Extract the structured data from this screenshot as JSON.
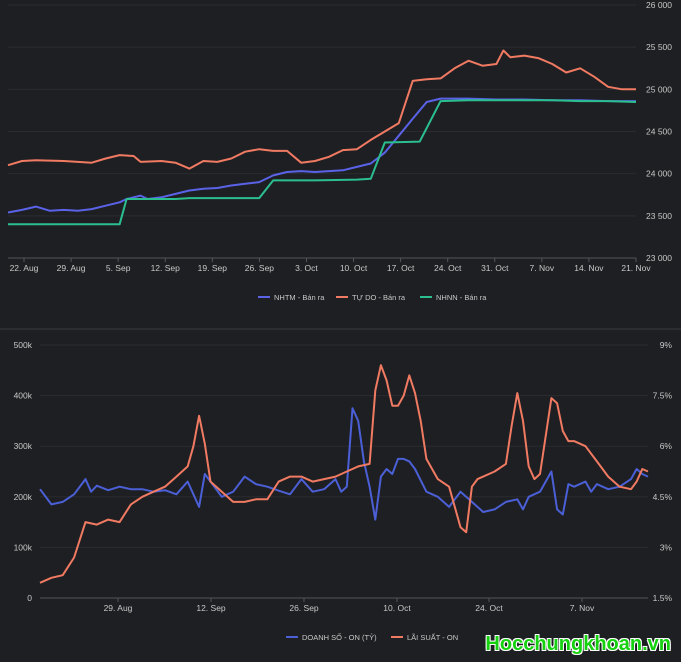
{
  "chart_data": [
    {
      "type": "line",
      "title": "",
      "x_ticks": [
        "22. Aug",
        "29. Aug",
        "5. Sep",
        "12. Sep",
        "19. Sep",
        "26. Sep",
        "3. Oct",
        "10. Oct",
        "17. Oct",
        "24. Oct",
        "31. Oct",
        "7. Nov",
        "14. Nov",
        "21. Nov"
      ],
      "y_ticks": [
        "23 000",
        "23 500",
        "24 000",
        "24 500",
        "25 000",
        "25 500",
        "26 000"
      ],
      "ylim": [
        23000,
        26000
      ],
      "y_axis_side": "right",
      "legend_position": "bottom",
      "series": [
        {
          "name": "NHTM - Bán ra",
          "color": "#5a63e8",
          "points": [
            [
              0,
              23540
            ],
            [
              2,
              23570
            ],
            [
              4,
              23610
            ],
            [
              6,
              23560
            ],
            [
              8,
              23570
            ],
            [
              10,
              23560
            ],
            [
              12,
              23580
            ],
            [
              14,
              23620
            ],
            [
              16,
              23660
            ],
            [
              17,
              23700
            ],
            [
              18,
              23720
            ],
            [
              19,
              23740
            ],
            [
              20,
              23700
            ],
            [
              22,
              23720
            ],
            [
              24,
              23760
            ],
            [
              26,
              23800
            ],
            [
              28,
              23820
            ],
            [
              30,
              23830
            ],
            [
              32,
              23860
            ],
            [
              34,
              23880
            ],
            [
              36,
              23900
            ],
            [
              38,
              23980
            ],
            [
              40,
              24020
            ],
            [
              42,
              24030
            ],
            [
              44,
              24020
            ],
            [
              46,
              24030
            ],
            [
              48,
              24040
            ],
            [
              50,
              24080
            ],
            [
              52,
              24120
            ],
            [
              54,
              24250
            ],
            [
              56,
              24450
            ],
            [
              58,
              24650
            ],
            [
              60,
              24850
            ],
            [
              62,
              24890
            ],
            [
              66,
              24890
            ],
            [
              70,
              24880
            ],
            [
              74,
              24880
            ],
            [
              78,
              24870
            ],
            [
              82,
              24870
            ],
            [
              86,
              24860
            ],
            [
              90,
              24860
            ]
          ]
        },
        {
          "name": "TỰ DO - Bán ra",
          "color": "#f07a62",
          "points": [
            [
              0,
              24100
            ],
            [
              2,
              24150
            ],
            [
              4,
              24160
            ],
            [
              8,
              24150
            ],
            [
              10,
              24140
            ],
            [
              12,
              24130
            ],
            [
              14,
              24180
            ],
            [
              16,
              24220
            ],
            [
              18,
              24210
            ],
            [
              19,
              24140
            ],
            [
              22,
              24150
            ],
            [
              24,
              24130
            ],
            [
              26,
              24060
            ],
            [
              28,
              24150
            ],
            [
              30,
              24140
            ],
            [
              32,
              24180
            ],
            [
              34,
              24260
            ],
            [
              36,
              24290
            ],
            [
              38,
              24270
            ],
            [
              40,
              24270
            ],
            [
              42,
              24130
            ],
            [
              44,
              24150
            ],
            [
              46,
              24200
            ],
            [
              48,
              24280
            ],
            [
              50,
              24290
            ],
            [
              52,
              24400
            ],
            [
              54,
              24500
            ],
            [
              56,
              24600
            ],
            [
              58,
              25100
            ],
            [
              60,
              25120
            ],
            [
              62,
              25130
            ],
            [
              64,
              25250
            ],
            [
              66,
              25340
            ],
            [
              68,
              25280
            ],
            [
              70,
              25300
            ],
            [
              71,
              25460
            ],
            [
              72,
              25380
            ],
            [
              74,
              25400
            ],
            [
              76,
              25370
            ],
            [
              78,
              25300
            ],
            [
              80,
              25200
            ],
            [
              82,
              25250
            ],
            [
              84,
              25150
            ],
            [
              86,
              25030
            ],
            [
              88,
              25000
            ],
            [
              90,
              25000
            ]
          ]
        },
        {
          "name": "NHNN - Bán ra",
          "color": "#2bbf8f",
          "points": [
            [
              0,
              23400
            ],
            [
              16,
              23400
            ],
            [
              17,
              23700
            ],
            [
              24,
              23700
            ],
            [
              26,
              23710
            ],
            [
              30,
              23710
            ],
            [
              36,
              23710
            ],
            [
              38,
              23920
            ],
            [
              44,
              23920
            ],
            [
              50,
              23930
            ],
            [
              52,
              23940
            ],
            [
              54,
              24370
            ],
            [
              59,
              24380
            ],
            [
              62,
              24860
            ],
            [
              66,
              24870
            ],
            [
              70,
              24870
            ],
            [
              74,
              24870
            ],
            [
              78,
              24870
            ],
            [
              82,
              24860
            ],
            [
              86,
              24860
            ],
            [
              90,
              24850
            ]
          ]
        }
      ]
    },
    {
      "type": "line",
      "title": "",
      "x_ticks": [
        "29. Aug",
        "12. Sep",
        "26. Sep",
        "10. Oct",
        "24. Oct",
        "7. Nov"
      ],
      "y_left_ticks": [
        "0",
        "100k",
        "200k",
        "300k",
        "400k",
        "500k"
      ],
      "y_right_ticks": [
        "1.5%",
        "3%",
        "4.5%",
        "6%",
        "7.5%",
        "9%"
      ],
      "ylim_left": [
        0,
        500000
      ],
      "ylim_right": [
        1.5,
        9
      ],
      "legend_position": "bottom",
      "series": [
        {
          "name": "DOANH SỐ - ON (TỶ)",
          "axis": "left",
          "color": "#4b5fd6",
          "points": [
            [
              0,
              215
            ],
            [
              2,
              185
            ],
            [
              4,
              190
            ],
            [
              6,
              205
            ],
            [
              8,
              235
            ],
            [
              9,
              210
            ],
            [
              10,
              222
            ],
            [
              12,
              213
            ],
            [
              14,
              220
            ],
            [
              16,
              215
            ],
            [
              18,
              215
            ],
            [
              20,
              210
            ],
            [
              22,
              213
            ],
            [
              24,
              205
            ],
            [
              26,
              230
            ],
            [
              27,
              205
            ],
            [
              28,
              180
            ],
            [
              29,
              245
            ],
            [
              30,
              230
            ],
            [
              32,
              200
            ],
            [
              34,
              210
            ],
            [
              36,
              240
            ],
            [
              38,
              225
            ],
            [
              40,
              220
            ],
            [
              42,
              212
            ],
            [
              44,
              205
            ],
            [
              46,
              235
            ],
            [
              48,
              210
            ],
            [
              50,
              215
            ],
            [
              52,
              235
            ],
            [
              53,
              210
            ],
            [
              54,
              220
            ],
            [
              55,
              375
            ],
            [
              56,
              350
            ],
            [
              57,
              270
            ],
            [
              58,
              220
            ],
            [
              59,
              155
            ],
            [
              60,
              240
            ],
            [
              61,
              255
            ],
            [
              62,
              245
            ],
            [
              63,
              275
            ],
            [
              64,
              275
            ],
            [
              65,
              270
            ],
            [
              66,
              255
            ],
            [
              68,
              210
            ],
            [
              70,
              200
            ],
            [
              72,
              180
            ],
            [
              74,
              210
            ],
            [
              76,
              190
            ],
            [
              78,
              170
            ],
            [
              80,
              175
            ],
            [
              82,
              190
            ],
            [
              84,
              195
            ],
            [
              85,
              175
            ],
            [
              86,
              200
            ],
            [
              88,
              210
            ],
            [
              90,
              250
            ],
            [
              91,
              175
            ],
            [
              92,
              165
            ],
            [
              93,
              225
            ],
            [
              94,
              220
            ],
            [
              96,
              230
            ],
            [
              97,
              210
            ],
            [
              98,
              225
            ],
            [
              100,
              215
            ],
            [
              102,
              220
            ],
            [
              104,
              235
            ],
            [
              105,
              255
            ],
            [
              106,
              245
            ],
            [
              107,
              240
            ]
          ]
        },
        {
          "name": "LÃI SUẤT - ON",
          "axis": "left",
          "color": "#f07a62",
          "points": [
            [
              0,
              30
            ],
            [
              2,
              40
            ],
            [
              4,
              45
            ],
            [
              6,
              80
            ],
            [
              8,
              150
            ],
            [
              10,
              145
            ],
            [
              12,
              155
            ],
            [
              14,
              150
            ],
            [
              16,
              185
            ],
            [
              18,
              200
            ],
            [
              20,
              210
            ],
            [
              22,
              220
            ],
            [
              24,
              240
            ],
            [
              26,
              260
            ],
            [
              27,
              300
            ],
            [
              28,
              360
            ],
            [
              29,
              305
            ],
            [
              30,
              230
            ],
            [
              32,
              210
            ],
            [
              34,
              190
            ],
            [
              36,
              190
            ],
            [
              38,
              195
            ],
            [
              40,
              195
            ],
            [
              42,
              230
            ],
            [
              44,
              240
            ],
            [
              46,
              240
            ],
            [
              48,
              230
            ],
            [
              50,
              235
            ],
            [
              52,
              240
            ],
            [
              54,
              250
            ],
            [
              56,
              260
            ],
            [
              58,
              265
            ],
            [
              59,
              410
            ],
            [
              60,
              460
            ],
            [
              61,
              430
            ],
            [
              62,
              380
            ],
            [
              63,
              380
            ],
            [
              64,
              400
            ],
            [
              65,
              440
            ],
            [
              66,
              405
            ],
            [
              67,
              350
            ],
            [
              68,
              275
            ],
            [
              70,
              235
            ],
            [
              72,
              220
            ],
            [
              74,
              140
            ],
            [
              75,
              130
            ],
            [
              76,
              220
            ],
            [
              77,
              235
            ],
            [
              78,
              240
            ],
            [
              80,
              250
            ],
            [
              82,
              265
            ],
            [
              83,
              340
            ],
            [
              84,
              405
            ],
            [
              85,
              350
            ],
            [
              86,
              260
            ],
            [
              87,
              235
            ],
            [
              88,
              245
            ],
            [
              89,
              320
            ],
            [
              90,
              395
            ],
            [
              91,
              385
            ],
            [
              92,
              330
            ],
            [
              93,
              310
            ],
            [
              94,
              310
            ],
            [
              96,
              300
            ],
            [
              98,
              270
            ],
            [
              100,
              240
            ],
            [
              102,
              220
            ],
            [
              104,
              215
            ],
            [
              105,
              230
            ],
            [
              106,
              255
            ],
            [
              107,
              250
            ]
          ]
        }
      ]
    }
  ],
  "watermark": "Hocchungkhoan.vn"
}
